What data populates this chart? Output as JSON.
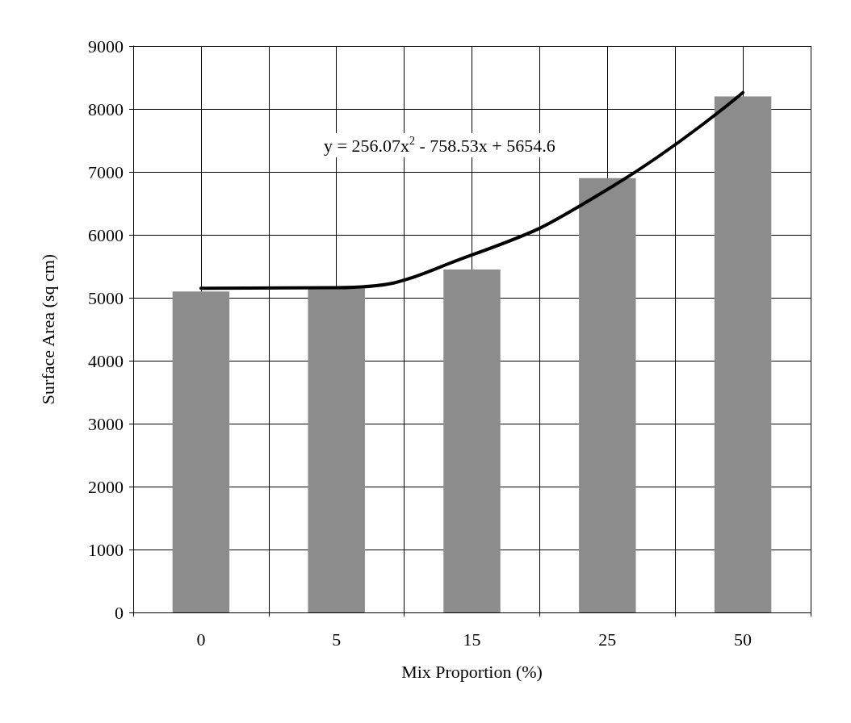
{
  "chart_data": {
    "type": "bar",
    "xlabel": "Mix Proportion (%)",
    "ylabel": "Surface Area (sq cm)",
    "categories": [
      "0",
      "5",
      "15",
      "25",
      "50"
    ],
    "series": [
      {
        "color": "#8c8c8c",
        "values": [
          5100,
          5150,
          5450,
          6900,
          8200
        ]
      },
      {
        "type": "line",
        "color": "#000000",
        "x": [
          "0",
          "5",
          "15",
          "25",
          "50"
        ],
        "values": [
          5150,
          5160,
          5680,
          6720,
          8260
        ]
      }
    ],
    "ylim": [
      0,
      9000
    ],
    "yticks": [
      0,
      1000,
      2000,
      3000,
      4000,
      5000,
      6000,
      7000,
      8000,
      9000
    ],
    "grid": true,
    "marker": "none",
    "line_style": "solid",
    "annotations": [
      "y = 256.07x$^{2}$ - 758.53x + 5654.6"
    ]
  }
}
